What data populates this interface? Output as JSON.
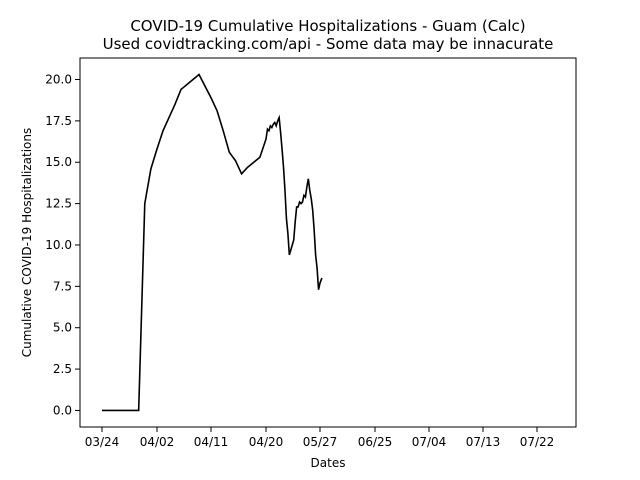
{
  "chart_data": {
    "type": "line",
    "title": "COVID-19 Cumulative Hospitalizations - Guam (Calc)",
    "subtitle": "Used covidtracking.com/api - Some data may be innacurate",
    "xlabel": "Dates",
    "ylabel": "Cumulative COVID-19 Hospitalizations",
    "xlim": [
      "03/22",
      "07/26"
    ],
    "ylim": [
      -1.0,
      21.3
    ],
    "x_ticks": [
      "03/24",
      "04/02",
      "04/11",
      "04/20",
      "05/27",
      "06/25",
      "07/04",
      "07/13",
      "07/22"
    ],
    "y_ticks": [
      "0.0",
      "2.5",
      "5.0",
      "7.5",
      "10.0",
      "12.5",
      "15.0",
      "17.5",
      "20.0"
    ],
    "grid": false,
    "line_color": "#000000",
    "series": [
      {
        "name": "",
        "x": [
          "03/24",
          "03/25",
          "03/26",
          "03/27",
          "03/28",
          "03/29",
          "03/30",
          "03/31",
          "04/01",
          "04/02",
          "04/03",
          "04/04",
          "04/05",
          "04/06",
          "04/07",
          "04/08",
          "04/09",
          "04/10",
          "04/11",
          "04/12",
          "04/13",
          "04/14",
          "04/15",
          "04/16",
          "04/17",
          "04/18",
          "04/19",
          "04/20",
          "04/21",
          "04/22",
          "04/23",
          "04/24",
          "04/25",
          "04/26",
          "04/27",
          "04/28",
          "04/29",
          "04/30",
          "05/01",
          "05/02",
          "05/03",
          "05/04",
          "05/05",
          "05/06",
          "05/07",
          "05/08",
          "05/09",
          "05/10",
          "05/11",
          "05/12",
          "05/13",
          "05/14",
          "05/15",
          "05/16",
          "05/17",
          "05/18",
          "05/19",
          "05/20",
          "05/21",
          "05/22",
          "05/23",
          "05/24",
          "05/25",
          "05/26",
          "05/27",
          "05/28"
        ],
        "y": [
          0.0,
          0.0,
          0.0,
          0.0,
          0.0,
          0.0,
          0.0,
          12.5,
          14.6,
          15.8,
          16.9,
          17.7,
          18.5,
          19.4,
          19.7,
          20.0,
          20.3,
          19.6,
          18.9,
          18.1,
          16.9,
          15.6,
          15.1,
          14.3,
          14.7,
          15.0,
          15.3,
          16.4,
          17.0,
          16.9,
          17.2,
          17.1,
          17.3,
          17.4,
          17.2,
          17.5,
          17.7,
          16.8,
          15.8,
          14.7,
          13.3,
          11.6,
          10.7,
          9.4,
          9.7,
          10.0,
          10.3,
          11.4,
          12.3,
          12.3,
          12.6,
          12.5,
          12.6,
          13.0,
          12.9,
          13.5,
          14.0,
          13.3,
          12.8,
          12.1,
          10.9,
          9.4,
          8.6,
          7.3,
          7.7,
          8.0
        ]
      }
    ],
    "x_full_dates": [
      "03/24",
      "03/25",
      "03/26",
      "03/27",
      "03/28",
      "03/29",
      "03/30",
      "03/31",
      "04/01",
      "04/02",
      "04/03",
      "04/04",
      "04/05",
      "04/06",
      "04/07",
      "04/08",
      "04/09",
      "04/10",
      "04/11",
      "04/12",
      "04/13",
      "04/14",
      "04/15",
      "04/16",
      "04/17",
      "04/18",
      "04/19",
      "04/20",
      "04/21",
      "04/22",
      "04/23",
      "04/24",
      "04/25",
      "04/26",
      "04/27",
      "04/28",
      "04/29",
      "04/30",
      "05/01",
      "05/02",
      "05/03",
      "05/04",
      "05/05",
      "05/06",
      "05/07",
      "05/08",
      "05/09",
      "05/10",
      "05/11",
      "05/12",
      "05/13",
      "05/14",
      "05/15",
      "05/16",
      "05/17",
      "05/18",
      "05/19",
      "05/20",
      "05/21",
      "05/22",
      "05/23",
      "05/24",
      "05/25",
      "05/26",
      "05/27",
      "05/28",
      "05/29",
      "05/30",
      "05/31",
      "06/01",
      "06/02",
      "06/03",
      "06/04",
      "06/05",
      "06/06",
      "06/07",
      "06/08",
      "06/09",
      "06/10",
      "06/11",
      "06/12",
      "06/13",
      "06/14",
      "06/15",
      "06/16",
      "06/17",
      "06/18",
      "06/19",
      "06/20",
      "06/21",
      "06/22",
      "06/23",
      "06/24",
      "06/25"
    ]
  }
}
